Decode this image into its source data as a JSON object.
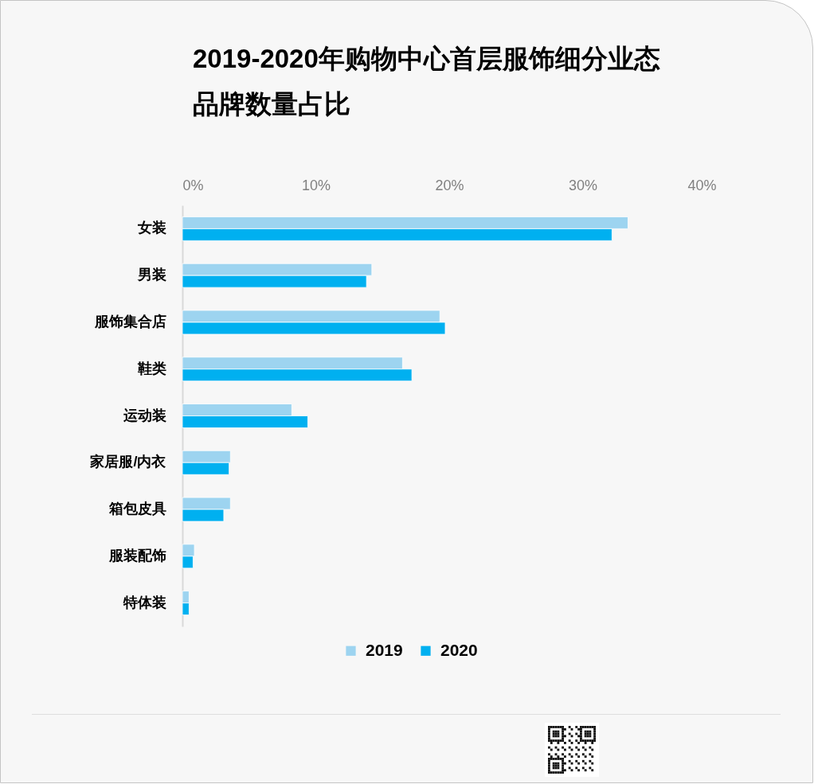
{
  "chart_data": {
    "type": "bar",
    "orientation": "horizontal",
    "title": "2019-2020年购物中心首层服饰细分业态品牌数量占比",
    "categories": [
      "女装",
      "男装",
      "服饰集合店",
      "鞋类",
      "运动装",
      "家居服/内衣",
      "箱包皮具",
      "服装配饰",
      "特体装"
    ],
    "series": [
      {
        "name": "2019",
        "color": "#9dd4f0",
        "values": [
          33.4,
          14.2,
          19.3,
          16.5,
          8.2,
          3.6,
          3.6,
          0.9,
          0.5
        ]
      },
      {
        "name": "2020",
        "color": "#00b0f0",
        "values": [
          32.2,
          13.8,
          19.7,
          17.2,
          9.4,
          3.5,
          3.1,
          0.8,
          0.5
        ]
      }
    ],
    "xlim": [
      0,
      40
    ],
    "xticks": [
      {
        "value": 0,
        "label": "0%"
      },
      {
        "value": 10,
        "label": "10%"
      },
      {
        "value": 20,
        "label": "20%"
      },
      {
        "value": 30,
        "label": "30%"
      },
      {
        "value": 40,
        "label": "40%"
      }
    ],
    "legend": "bottom"
  }
}
